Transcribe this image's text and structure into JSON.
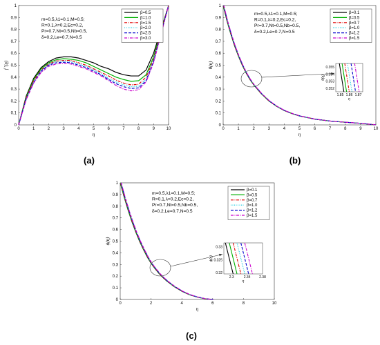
{
  "chart_data": [
    {
      "type": "line",
      "caption": "(a)",
      "xlabel": "η",
      "ylabel": "f ′(η)",
      "xlim": [
        0,
        10
      ],
      "ylim": [
        0,
        1
      ],
      "xticks": [
        0,
        1,
        2,
        3,
        4,
        5,
        6,
        7,
        8,
        9,
        10
      ],
      "yticks": [
        0,
        0.1,
        0.2,
        0.3,
        0.4,
        0.5,
        0.6,
        0.7,
        0.8,
        0.9,
        1
      ],
      "params": [
        "m=0.5,λ1=0.1,M=0.5;",
        "R=0.1,λ=0.2,Ec=0.2,",
        "Pr=0.7,Nt=0.5,Nb=0.5,",
        "δ=0.2,Le=0.7,N=0.5"
      ],
      "legend_position": "top-right",
      "series": [
        {
          "name": "β=0.5",
          "color": "#000000",
          "dash": "solid",
          "x": [
            0,
            0.5,
            1,
            1.5,
            2,
            2.5,
            3,
            3.5,
            4,
            4.5,
            5,
            5.5,
            6,
            6.5,
            7,
            7.5,
            8,
            8.5,
            9,
            9.5,
            10
          ],
          "values": [
            0,
            0.24,
            0.39,
            0.48,
            0.53,
            0.56,
            0.57,
            0.57,
            0.56,
            0.54,
            0.52,
            0.49,
            0.47,
            0.44,
            0.42,
            0.41,
            0.41,
            0.46,
            0.6,
            0.8,
            1.0
          ]
        },
        {
          "name": "β=1.0",
          "color": "#00b000",
          "dash": "solid",
          "x": [
            0,
            0.5,
            1,
            1.5,
            2,
            2.5,
            3,
            3.5,
            4,
            4.5,
            5,
            5.5,
            6,
            6.5,
            7,
            7.5,
            8,
            8.5,
            9,
            9.5,
            10
          ],
          "values": [
            0,
            0.23,
            0.38,
            0.47,
            0.52,
            0.545,
            0.555,
            0.55,
            0.54,
            0.52,
            0.49,
            0.46,
            0.43,
            0.4,
            0.38,
            0.365,
            0.37,
            0.42,
            0.57,
            0.79,
            1.0
          ]
        },
        {
          "name": "β=1.5",
          "color": "#e00000",
          "dash": "dashdot",
          "x": [
            0,
            0.5,
            1,
            1.5,
            2,
            2.5,
            3,
            3.5,
            4,
            4.5,
            5,
            5.5,
            6,
            6.5,
            7,
            7.5,
            8,
            8.5,
            9,
            9.5,
            10
          ],
          "values": [
            0,
            0.225,
            0.37,
            0.46,
            0.51,
            0.535,
            0.54,
            0.54,
            0.52,
            0.5,
            0.47,
            0.44,
            0.41,
            0.375,
            0.35,
            0.335,
            0.34,
            0.4,
            0.55,
            0.78,
            1.0
          ]
        },
        {
          "name": "β=2.0",
          "color": "#00c8e0",
          "dash": "dotted",
          "x": [
            0,
            0.5,
            1,
            1.5,
            2,
            2.5,
            3,
            3.5,
            4,
            4.5,
            5,
            5.5,
            6,
            6.5,
            7,
            7.5,
            8,
            8.5,
            9,
            9.5,
            10
          ],
          "values": [
            0,
            0.22,
            0.36,
            0.455,
            0.505,
            0.53,
            0.535,
            0.53,
            0.51,
            0.49,
            0.46,
            0.43,
            0.39,
            0.36,
            0.335,
            0.32,
            0.325,
            0.38,
            0.54,
            0.77,
            1.0
          ]
        },
        {
          "name": "β=2.5",
          "color": "#0000cc",
          "dash": "dashed",
          "x": [
            0,
            0.5,
            1,
            1.5,
            2,
            2.5,
            3,
            3.5,
            4,
            4.5,
            5,
            5.5,
            6,
            6.5,
            7,
            7.5,
            8,
            8.5,
            9,
            9.5,
            10
          ],
          "values": [
            0,
            0.215,
            0.355,
            0.45,
            0.5,
            0.52,
            0.525,
            0.52,
            0.5,
            0.48,
            0.45,
            0.42,
            0.38,
            0.345,
            0.32,
            0.305,
            0.31,
            0.37,
            0.53,
            0.77,
            1.0
          ]
        },
        {
          "name": "β=3.0",
          "color": "#cc00cc",
          "dash": "dashdot",
          "x": [
            0,
            0.5,
            1,
            1.5,
            2,
            2.5,
            3,
            3.5,
            4,
            4.5,
            5,
            5.5,
            6,
            6.5,
            7,
            7.5,
            8,
            8.5,
            9,
            9.5,
            10
          ],
          "values": [
            0,
            0.21,
            0.35,
            0.44,
            0.49,
            0.51,
            0.515,
            0.51,
            0.49,
            0.47,
            0.44,
            0.41,
            0.37,
            0.33,
            0.3,
            0.285,
            0.295,
            0.36,
            0.52,
            0.76,
            1.0
          ]
        }
      ]
    },
    {
      "type": "line",
      "caption": "(b)",
      "xlabel": "η",
      "ylabel": "θ(η)",
      "xlim": [
        0,
        10
      ],
      "ylim": [
        0,
        1
      ],
      "xticks": [
        0,
        1,
        2,
        3,
        4,
        5,
        6,
        7,
        8,
        9,
        10
      ],
      "yticks": [
        0,
        0.1,
        0.2,
        0.3,
        0.4,
        0.5,
        0.6,
        0.7,
        0.8,
        0.9,
        1
      ],
      "params": [
        "m=0.5,λ1=0.1,M=0.5;",
        "R=0.1,λ=0.2,Ec=0.2,",
        "Pr=0.7,Nt=0.5,Nb=0.5,",
        "δ=0.2,Le=0.7,N=0.5"
      ],
      "legend_position": "top-right",
      "series": [
        {
          "name": "β=0.1",
          "color": "#000000",
          "dash": "solid"
        },
        {
          "name": "β=0.5",
          "color": "#00b000",
          "dash": "solid"
        },
        {
          "name": "β=0.7",
          "color": "#e00000",
          "dash": "dashdot"
        },
        {
          "name": "β=1.0",
          "color": "#00c8e0",
          "dash": "dotted"
        },
        {
          "name": "β=1.2",
          "color": "#0000cc",
          "dash": "dashed"
        },
        {
          "name": "β=1.5",
          "color": "#cc00cc",
          "dash": "dashdot"
        }
      ],
      "curve": {
        "x": [
          0,
          0.25,
          0.5,
          0.75,
          1,
          1.25,
          1.5,
          1.75,
          2,
          2.5,
          3,
          3.5,
          4,
          4.5,
          5,
          6,
          7,
          8,
          9,
          10
        ],
        "values": [
          1,
          0.87,
          0.76,
          0.66,
          0.575,
          0.5,
          0.435,
          0.38,
          0.335,
          0.26,
          0.2,
          0.155,
          0.12,
          0.095,
          0.075,
          0.048,
          0.032,
          0.022,
          0.013,
          0
        ]
      },
      "inset": {
        "xlabel": "η",
        "ylabel": "θ(η)",
        "xlim": [
          1.845,
          1.875
        ],
        "ylim": [
          0.3515,
          0.3555
        ],
        "xticks": [
          1.85,
          1.86,
          1.87
        ],
        "yticks": [
          0.352,
          0.353,
          0.354,
          0.355
        ],
        "x_at_y_min": [
          1.854,
          1.857,
          1.86,
          1.863,
          1.867,
          1.871
        ],
        "x_at_y_max": [
          1.849,
          1.852,
          1.855,
          1.858,
          1.862,
          1.866
        ]
      }
    },
    {
      "type": "line",
      "caption": "(c)",
      "xlabel": "η",
      "ylabel": "ϕ(η)",
      "xlim": [
        0,
        10
      ],
      "ylim": [
        0,
        1
      ],
      "xticks": [
        0,
        2,
        4,
        6,
        8,
        10
      ],
      "yticks": [
        0,
        0.1,
        0.2,
        0.3,
        0.4,
        0.5,
        0.6,
        0.7,
        0.8,
        0.9,
        1
      ],
      "params": [
        "m=0.5,λ1=0.1,M=0.5;",
        "R=0.1,λ=0.2,Ec=0.2,",
        "Pr=0.7,Nt=0.5,Nb=0.5,",
        "δ=0.2,Le=0.7,N=0.5"
      ],
      "legend_position": "top-right",
      "series": [
        {
          "name": "β=0.1",
          "color": "#000000",
          "dash": "solid"
        },
        {
          "name": "β=0.5",
          "color": "#00b000",
          "dash": "solid"
        },
        {
          "name": "β=0.7",
          "color": "#e00000",
          "dash": "dashdot"
        },
        {
          "name": "β=1.0",
          "color": "#00c8e0",
          "dash": "dotted"
        },
        {
          "name": "β=1.2",
          "color": "#0000cc",
          "dash": "dashed"
        },
        {
          "name": "β=1.5",
          "color": "#cc00cc",
          "dash": "dashdot"
        }
      ],
      "curve": {
        "x": [
          0,
          0.25,
          0.5,
          0.75,
          1,
          1.25,
          1.5,
          1.75,
          2,
          2.25,
          2.5,
          2.75,
          3,
          3.5,
          4,
          4.5,
          5,
          5.5,
          6
        ],
        "values": [
          1,
          0.88,
          0.77,
          0.67,
          0.58,
          0.5,
          0.43,
          0.365,
          0.31,
          0.265,
          0.225,
          0.19,
          0.16,
          0.11,
          0.07,
          0.04,
          0.02,
          0.006,
          0
        ]
      },
      "inset": {
        "xlabel": "η",
        "ylabel": "ϕ(η)",
        "xlim": [
          2.28,
          2.38
        ],
        "ylim": [
          0.3195,
          0.3315
        ],
        "xticks": [
          2.3,
          2.34,
          2.38
        ],
        "ytick_labels": [
          [
            "0.33",
            0.33
          ],
          [
            "0.325",
            0.325
          ],
          [
            "0.32",
            0.32
          ]
        ],
        "x_at_y_min": [
          2.304,
          2.314,
          2.324,
          2.334,
          2.344,
          2.354
        ],
        "x_at_y_max": [
          2.284,
          2.294,
          2.304,
          2.314,
          2.324,
          2.334
        ]
      }
    }
  ]
}
